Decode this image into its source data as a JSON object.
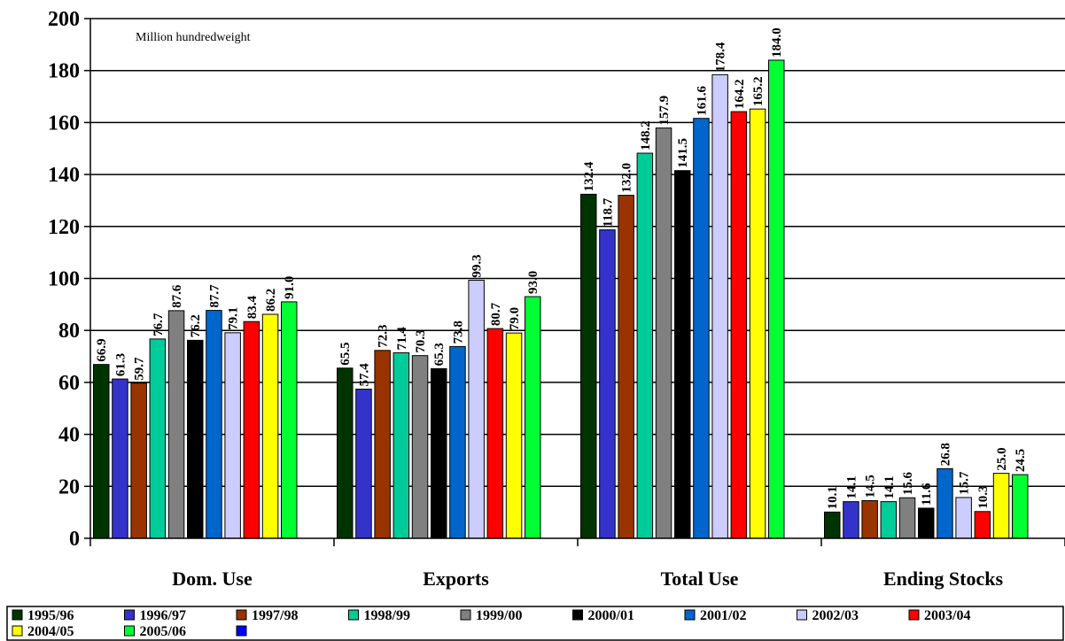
{
  "chart_data": {
    "type": "bar",
    "unit_note": "Million hundredweight",
    "categories": [
      "Dom. Use",
      "Exports",
      "Total Use",
      "Ending Stocks"
    ],
    "ylim": [
      0,
      200
    ],
    "yticks": [
      "0",
      "20",
      "40",
      "60",
      "80",
      "100",
      "120",
      "140",
      "160",
      "180",
      "200"
    ],
    "grid": true,
    "legend_position": "bottom",
    "series": [
      {
        "name": "1995/96",
        "color": "#003300",
        "values": [
          66.9,
          65.5,
          132.4,
          10.1
        ],
        "labels": [
          "66.9",
          "65.5",
          "132.4",
          "10.1"
        ]
      },
      {
        "name": "1996/97",
        "color": "#3333cc",
        "values": [
          61.3,
          57.4,
          118.7,
          14.1
        ],
        "labels": [
          "61.3",
          "57.4",
          "118.7",
          "14.1"
        ]
      },
      {
        "name": "1997/98",
        "color": "#993300",
        "values": [
          59.7,
          72.3,
          132.0,
          14.5
        ],
        "labels": [
          "59.7",
          "72.3",
          "132.0",
          "14.5"
        ]
      },
      {
        "name": "1998/99",
        "color": "#00cc99",
        "values": [
          76.7,
          71.4,
          148.2,
          14.1
        ],
        "labels": [
          "76.7",
          "71.4",
          "148.2",
          "14.1"
        ]
      },
      {
        "name": "1999/00",
        "color": "#808080",
        "values": [
          87.6,
          70.3,
          157.9,
          15.6
        ],
        "labels": [
          "87.6",
          "70.3",
          "157.9",
          "15.6"
        ]
      },
      {
        "name": "2000/01",
        "color": "#000000",
        "values": [
          76.2,
          65.3,
          141.5,
          11.6
        ],
        "labels": [
          "76.2",
          "65.3",
          "141.5",
          "11.6"
        ]
      },
      {
        "name": "2001/02",
        "color": "#0066cc",
        "values": [
          87.7,
          73.8,
          161.6,
          26.8
        ],
        "labels": [
          "87.7",
          "73.8",
          "161.6",
          "26.8"
        ]
      },
      {
        "name": "2002/03",
        "color": "#ccccff",
        "values": [
          79.1,
          99.3,
          178.4,
          15.7
        ],
        "labels": [
          "79.1",
          "99.3",
          "178.4",
          "15.7"
        ]
      },
      {
        "name": "2003/04",
        "color": "#ff0000",
        "values": [
          83.4,
          80.7,
          164.2,
          10.3
        ],
        "labels": [
          "83.4",
          "80.7",
          "164.2",
          "10.3"
        ]
      },
      {
        "name": "2004/05",
        "color": "#ffff00",
        "values": [
          86.2,
          79.0,
          165.2,
          25.0
        ],
        "labels": [
          "86.2",
          "79.0",
          "165.2",
          "25.0"
        ]
      },
      {
        "name": "2005/06",
        "color": "#00ff33",
        "values": [
          91.0,
          93.0,
          184.0,
          24.5
        ],
        "labels": [
          "91.0",
          "93.0",
          "184.0",
          "24.5"
        ]
      }
    ],
    "legend_extra_swatch_color": "#0000ff"
  }
}
